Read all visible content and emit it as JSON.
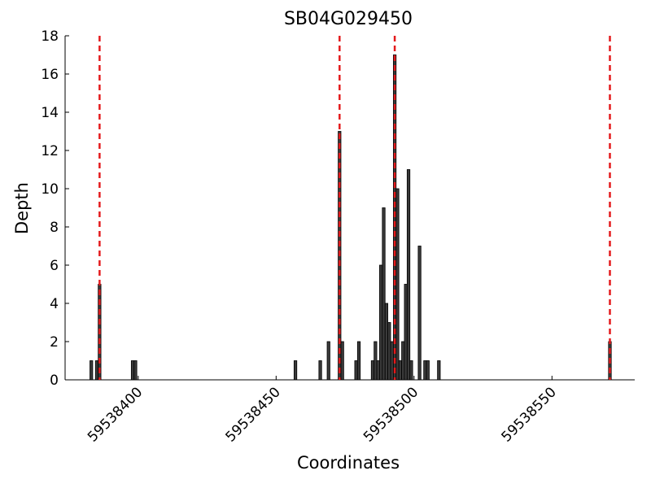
{
  "chart_data": {
    "type": "bar",
    "title": "SB04G029450",
    "xlabel": "Coordinates",
    "ylabel": "Depth",
    "x": [
      59538383,
      59538385,
      59538386,
      59538398,
      59538399,
      59538457,
      59538466,
      59538469,
      59538473,
      59538474,
      59538479,
      59538480,
      59538485,
      59538486,
      59538487,
      59538488,
      59538489,
      59538490,
      59538491,
      59538492,
      59538493,
      59538494,
      59538495,
      59538496,
      59538497,
      59538498,
      59538499,
      59538502,
      59538504,
      59538505,
      59538509,
      59538571
    ],
    "values": [
      1,
      1,
      5,
      1,
      1,
      1,
      1,
      2,
      13,
      2,
      1,
      2,
      1,
      2,
      1,
      6,
      9,
      4,
      3,
      2,
      17,
      10,
      1,
      2,
      5,
      11,
      1,
      7,
      1,
      1,
      1,
      2
    ],
    "color": "#3a3a3a",
    "vlines": [
      59538386,
      59538473,
      59538493,
      59538571
    ],
    "vline_color": "#e41a1c",
    "xlim": [
      59538373.5,
      59538580
    ],
    "xticks": [
      59538400,
      59538450,
      59538500,
      59538550
    ],
    "ylim": [
      0,
      18
    ],
    "yticks": [
      0,
      2,
      4,
      6,
      8,
      10,
      12,
      14,
      16,
      18
    ]
  }
}
